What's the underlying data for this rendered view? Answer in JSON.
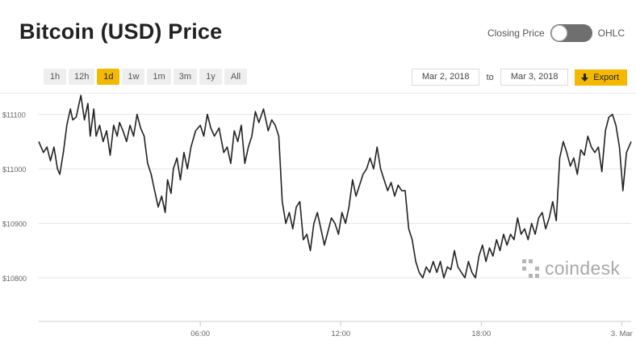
{
  "header": {
    "title": "Bitcoin (USD) Price"
  },
  "toggle": {
    "left_label": "Closing Price",
    "right_label": "OHLC",
    "state": "closing"
  },
  "range_buttons": [
    "1h",
    "12h",
    "1d",
    "1w",
    "1m",
    "3m",
    "1y",
    "All"
  ],
  "active_range": "1d",
  "date_range": {
    "from": "Mar 2, 2018",
    "to_label": "to",
    "to": "Mar 3, 2018"
  },
  "export": {
    "label": "Export",
    "icon": "download-arrow-icon"
  },
  "watermark": {
    "text": "coindesk",
    "icon": "coindesk-logo-icon"
  },
  "colors": {
    "accent": "#f5b800",
    "line": "#222222",
    "grid": "#e6e6e6",
    "toggle": "#6f6f6f"
  },
  "chart_data": {
    "type": "line",
    "title": "Bitcoin (USD) Price",
    "xlabel": "",
    "ylabel": "",
    "x_unit": "hours from Mar 2, 2018 00:00",
    "x_ticks": [
      {
        "label": "06:00",
        "value": 6
      },
      {
        "label": "12:00",
        "value": 12
      },
      {
        "label": "18:00",
        "value": 18
      },
      {
        "label": "3. Mar",
        "value": 24
      }
    ],
    "y_ticks": [
      {
        "label": "$10800",
        "value": 10800
      },
      {
        "label": "$10900",
        "value": 10900
      },
      {
        "label": "$11000",
        "value": 11000
      },
      {
        "label": "$11100",
        "value": 11100
      }
    ],
    "xlim": [
      -0.9,
      24.4
    ],
    "ylim": [
      10720,
      11135
    ],
    "grid": true,
    "series": [
      {
        "name": "",
        "x": [
          -0.9,
          -0.7,
          -0.55,
          -0.4,
          -0.25,
          -0.1,
          0.0,
          0.15,
          0.3,
          0.45,
          0.55,
          0.7,
          0.9,
          1.05,
          1.2,
          1.3,
          1.45,
          1.55,
          1.7,
          1.85,
          2.0,
          2.15,
          2.3,
          2.45,
          2.55,
          2.7,
          2.85,
          3.0,
          3.15,
          3.3,
          3.45,
          3.6,
          3.75,
          3.9,
          4.05,
          4.2,
          4.35,
          4.5,
          4.6,
          4.75,
          4.85,
          5.0,
          5.15,
          5.3,
          5.45,
          5.6,
          5.8,
          6.0,
          6.15,
          6.3,
          6.45,
          6.6,
          6.8,
          7.0,
          7.15,
          7.3,
          7.45,
          7.6,
          7.75,
          7.9,
          8.05,
          8.2,
          8.35,
          8.5,
          8.7,
          8.9,
          9.05,
          9.2,
          9.35,
          9.5,
          9.65,
          9.8,
          9.95,
          10.1,
          10.25,
          10.4,
          10.55,
          10.7,
          10.85,
          11.0,
          11.15,
          11.3,
          11.45,
          11.6,
          11.75,
          11.9,
          12.05,
          12.2,
          12.35,
          12.5,
          12.65,
          12.8,
          12.95,
          13.1,
          13.25,
          13.4,
          13.55,
          13.7,
          13.85,
          14.0,
          14.15,
          14.3,
          14.45,
          14.6,
          14.75,
          14.9,
          15.05,
          15.2,
          15.35,
          15.5,
          15.65,
          15.8,
          15.95,
          16.1,
          16.25,
          16.4,
          16.55,
          16.7,
          16.85,
          17.0,
          17.15,
          17.3,
          17.45,
          17.6,
          17.75,
          17.9,
          18.05,
          18.2,
          18.35,
          18.5,
          18.65,
          18.8,
          18.95,
          19.1,
          19.25,
          19.4,
          19.55,
          19.7,
          19.85,
          20.0,
          20.15,
          20.3,
          20.45,
          20.6,
          20.75,
          20.9,
          21.05,
          21.2,
          21.35,
          21.5,
          21.65,
          21.8,
          21.95,
          22.1,
          22.25,
          22.4,
          22.55,
          22.7,
          22.85,
          23.0,
          23.15,
          23.3,
          23.45,
          23.6,
          23.75,
          23.9,
          24.05,
          24.2,
          24.4
        ],
        "values": [
          11050,
          11030,
          11040,
          11015,
          11040,
          11000,
          10990,
          11030,
          11080,
          11110,
          11090,
          11095,
          11135,
          11090,
          11120,
          11060,
          11110,
          11060,
          11080,
          11050,
          11070,
          11025,
          11080,
          11060,
          11085,
          11070,
          11050,
          11080,
          11060,
          11100,
          11075,
          11060,
          11010,
          10990,
          10960,
          10930,
          10950,
          10920,
          10980,
          10955,
          11000,
          11020,
          10980,
          11030,
          11000,
          11040,
          11070,
          11080,
          11060,
          11100,
          11075,
          11060,
          11075,
          11030,
          11040,
          11010,
          11070,
          11050,
          11080,
          11010,
          11040,
          11060,
          11105,
          11085,
          11110,
          11070,
          11090,
          11080,
          11060,
          10940,
          10900,
          10920,
          10890,
          10930,
          10940,
          10870,
          10880,
          10850,
          10900,
          10920,
          10890,
          10860,
          10885,
          10910,
          10900,
          10880,
          10920,
          10900,
          10930,
          10980,
          10950,
          10970,
          10990,
          11000,
          11020,
          11000,
          11040,
          11000,
          10980,
          10960,
          10975,
          10950,
          10970,
          10960,
          10960,
          10890,
          10870,
          10830,
          10810,
          10800,
          10820,
          10810,
          10830,
          10810,
          10830,
          10800,
          10820,
          10815,
          10850,
          10820,
          10810,
          10800,
          10830,
          10810,
          10800,
          10840,
          10860,
          10830,
          10855,
          10840,
          10870,
          10850,
          10880,
          10860,
          10880,
          10870,
          10910,
          10880,
          10890,
          10870,
          10900,
          10880,
          10910,
          10920,
          10890,
          10910,
          10940,
          10905,
          11020,
          11050,
          11030,
          11005,
          11020,
          10990,
          11035,
          11025,
          11060,
          11040,
          11030,
          11040,
          10995,
          11070,
          11095,
          11100,
          11080,
          11040,
          10960,
          11030,
          11050
        ]
      }
    ]
  }
}
